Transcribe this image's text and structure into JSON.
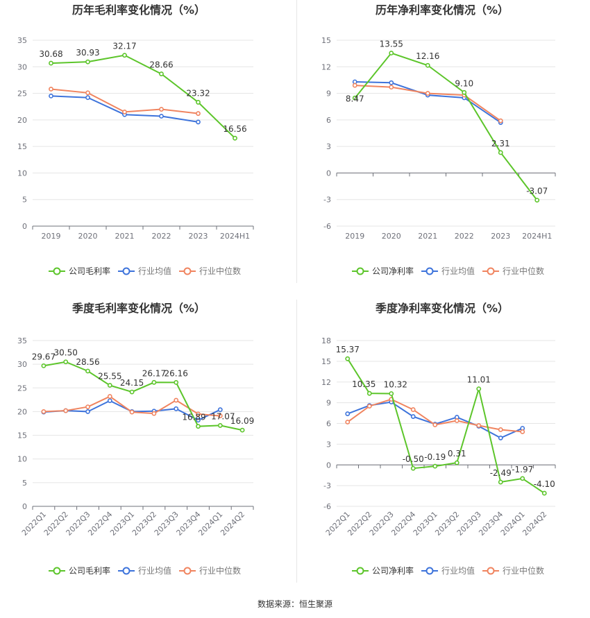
{
  "source_label": "数据来源：恒生聚源",
  "colors": {
    "company": "#5cc52a",
    "industry_avg": "#3d73db",
    "industry_median": "#f0845f",
    "grid": "#e5e5e5",
    "axis": "#6e7079",
    "title": "#333333"
  },
  "chart_data": [
    {
      "type": "line",
      "title": "历年毛利率变化情况（%）",
      "categories": [
        "2019",
        "2020",
        "2021",
        "2022",
        "2023",
        "2024H1"
      ],
      "ylim": [
        0,
        35
      ],
      "yticks": [
        0,
        5,
        10,
        15,
        20,
        25,
        30,
        35
      ],
      "xlabel_rotate": false,
      "series": [
        {
          "name": "公司毛利率",
          "key": "company",
          "values": [
            30.68,
            30.93,
            32.17,
            28.66,
            23.32,
            16.56
          ],
          "labels": [
            "30.68",
            "30.93",
            "32.17",
            "28.66",
            "23.32",
            "16.56"
          ]
        },
        {
          "name": "行业均值",
          "key": "industry_avg",
          "values": [
            24.5,
            24.2,
            21.0,
            20.7,
            19.6,
            null
          ]
        },
        {
          "name": "行业中位数",
          "key": "industry_median",
          "values": [
            25.8,
            25.1,
            21.5,
            22.0,
            21.2,
            null
          ]
        }
      ]
    },
    {
      "type": "line",
      "title": "历年净利率变化情况（%）",
      "categories": [
        "2019",
        "2020",
        "2021",
        "2022",
        "2023",
        "2024H1"
      ],
      "ylim": [
        -6,
        15
      ],
      "yticks": [
        -6,
        -3,
        0,
        3,
        6,
        9,
        12,
        15
      ],
      "xlabel_rotate": false,
      "series": [
        {
          "name": "公司净利率",
          "key": "company",
          "values": [
            8.47,
            13.55,
            12.16,
            9.1,
            2.31,
            -3.07
          ],
          "labels": [
            "8.47",
            "13.55",
            "12.16",
            "9.10",
            "2.31",
            "-3.07"
          ]
        },
        {
          "name": "行业均值",
          "key": "industry_avg",
          "values": [
            10.3,
            10.2,
            8.8,
            8.5,
            5.7,
            null
          ]
        },
        {
          "name": "行业中位数",
          "key": "industry_median",
          "values": [
            9.9,
            9.7,
            9.0,
            8.8,
            5.9,
            null
          ]
        }
      ]
    },
    {
      "type": "line",
      "title": "季度毛利率变化情况（%）",
      "categories": [
        "2022Q1",
        "2022Q2",
        "2022Q3",
        "2022Q4",
        "2023Q1",
        "2023Q2",
        "2023Q3",
        "2023Q4",
        "2024Q1",
        "2024Q2"
      ],
      "ylim": [
        0,
        35
      ],
      "yticks": [
        0,
        5,
        10,
        15,
        20,
        25,
        30,
        35
      ],
      "xlabel_rotate": true,
      "series": [
        {
          "name": "公司毛利率",
          "key": "company",
          "values": [
            29.67,
            30.5,
            28.56,
            25.55,
            24.15,
            26.17,
            26.16,
            16.89,
            17.07,
            16.09
          ],
          "labels": [
            "29.67",
            "30.50",
            "28.56",
            "25.55",
            "24.15",
            "26.17",
            "26.16",
            "16.89",
            "17.07",
            "16.09"
          ]
        },
        {
          "name": "行业均值",
          "key": "industry_avg",
          "values": [
            19.9,
            20.2,
            20.0,
            22.3,
            20.0,
            20.1,
            20.6,
            18.2,
            20.4,
            null
          ]
        },
        {
          "name": "行业中位数",
          "key": "industry_median",
          "values": [
            20.0,
            20.2,
            21.0,
            23.2,
            19.9,
            19.6,
            22.4,
            19.5,
            19.1,
            null
          ]
        }
      ]
    },
    {
      "type": "line",
      "title": "季度净利率变化情况（%）",
      "categories": [
        "2022Q1",
        "2022Q2",
        "2022Q3",
        "2022Q4",
        "2023Q1",
        "2023Q2",
        "2023Q3",
        "2023Q4",
        "2024Q1",
        "2024Q2"
      ],
      "ylim": [
        -6,
        18
      ],
      "yticks": [
        -6,
        -3,
        0,
        3,
        6,
        9,
        12,
        15,
        18
      ],
      "xlabel_rotate": true,
      "series": [
        {
          "name": "公司净利率",
          "key": "company",
          "values": [
            15.37,
            10.35,
            10.32,
            -0.5,
            -0.19,
            0.31,
            11.01,
            -2.49,
            -1.97,
            -4.1
          ],
          "labels": [
            "15.37",
            "10.35",
            "10.32",
            "-0.50",
            "-0.19",
            "0.31",
            "11.01",
            "-2.49",
            "-1.97",
            "-4.10"
          ]
        },
        {
          "name": "行业均值",
          "key": "industry_avg",
          "values": [
            7.4,
            8.6,
            9.1,
            7.0,
            5.9,
            6.9,
            5.6,
            3.9,
            5.3,
            null
          ]
        },
        {
          "name": "行业中位数",
          "key": "industry_median",
          "values": [
            6.2,
            8.5,
            9.5,
            8.0,
            5.8,
            6.4,
            5.7,
            5.1,
            4.8,
            null
          ]
        }
      ]
    }
  ]
}
